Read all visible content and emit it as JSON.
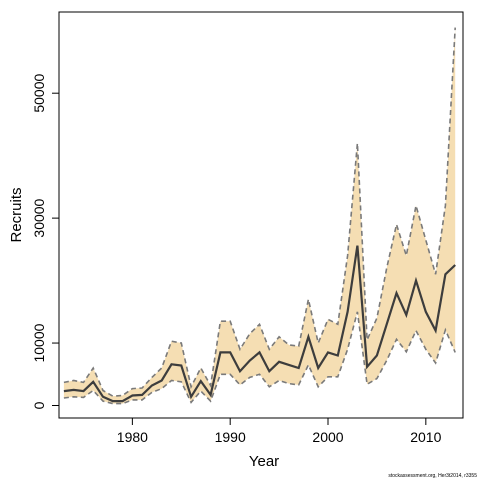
{
  "chart_data": {
    "type": "area",
    "title": "",
    "xlabel": "Year",
    "ylabel": "Recruits",
    "xlim": [
      1972.5,
      2013.8
    ],
    "ylim": [
      -2000,
      63000
    ],
    "x_ticks": [
      1980,
      1990,
      2000,
      2010
    ],
    "y_ticks": [
      0,
      10000,
      30000,
      50000
    ],
    "grid": false,
    "legend": "none",
    "colors": {
      "band": "#f5deb3",
      "bound_line": "#7a7a7a",
      "estimate_line": "#3d3d3d",
      "frame": "#000000"
    },
    "x": [
      1973,
      1974,
      1975,
      1976,
      1977,
      1978,
      1979,
      1980,
      1981,
      1982,
      1983,
      1984,
      1985,
      1986,
      1987,
      1988,
      1989,
      1990,
      1991,
      1992,
      1993,
      1994,
      1995,
      1996,
      1997,
      1998,
      1999,
      2000,
      2001,
      2002,
      2003,
      2004,
      2005,
      2006,
      2007,
      2008,
      2009,
      2010,
      2011,
      2012,
      2013
    ],
    "series": [
      {
        "role": "upper",
        "values": [
          3700,
          4000,
          3700,
          6000,
          2400,
          1500,
          1600,
          2700,
          2800,
          4500,
          6000,
          10300,
          10000,
          3000,
          6000,
          3200,
          13500,
          13500,
          9000,
          11500,
          13000,
          9000,
          11000,
          9700,
          9500,
          17000,
          10000,
          13800,
          13000,
          24000,
          42000,
          10500,
          14000,
          22000,
          29000,
          24000,
          32000,
          26500,
          21000,
          32000,
          60500
        ]
      },
      {
        "role": "estimate",
        "values": [
          2300,
          2500,
          2300,
          3800,
          1400,
          700,
          700,
          1600,
          1700,
          3200,
          4000,
          6600,
          6400,
          1400,
          3900,
          1700,
          8500,
          8500,
          5500,
          7200,
          8500,
          5500,
          7000,
          6500,
          6000,
          11000,
          6000,
          8500,
          8000,
          15000,
          25600,
          6200,
          8000,
          13000,
          18000,
          14500,
          20000,
          15000,
          12000,
          21000,
          22500
        ]
      },
      {
        "role": "lower",
        "values": [
          1200,
          1400,
          1300,
          2400,
          700,
          300,
          300,
          900,
          900,
          2100,
          2700,
          4000,
          3800,
          500,
          2300,
          700,
          5000,
          5000,
          3300,
          4500,
          5000,
          3000,
          4000,
          3500,
          3300,
          6500,
          3000,
          4600,
          4600,
          9000,
          15000,
          3400,
          4300,
          7200,
          10600,
          8600,
          12000,
          9000,
          6800,
          12100,
          8500
        ]
      }
    ]
  },
  "footer": {
    "note": "stockassessment.org, Her3t2014, r3355"
  }
}
